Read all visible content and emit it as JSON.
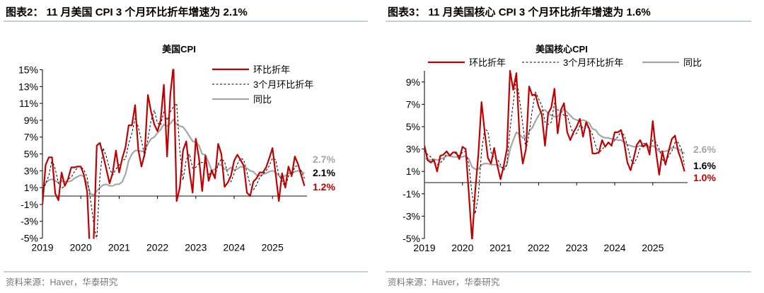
{
  "panels": [
    {
      "header": "图表2：  11 月美国 CPI 3 个月环比折年增速为 2.1%",
      "source": "资料来源：Haver，华泰研究"
    },
    {
      "header": "图表3：  11 月美国核心 CPI 3 个月环比折年增速为 1.6%",
      "source": "资料来源：Haver，华泰研究"
    }
  ],
  "colors": {
    "mom": "#c00000",
    "three_month": "#000000",
    "yoy": "#a6a6a6",
    "rule": "#c5d0de"
  },
  "chart_data": [
    {
      "type": "line",
      "title": "美国CPI",
      "x_start": "2019-01",
      "x_end": "2025-11",
      "frequency": "monthly",
      "xticks": [
        "2019",
        "2020",
        "2021",
        "2022",
        "2023",
        "2024",
        "2025"
      ],
      "yticks": [
        "15%",
        "13%",
        "11%",
        "9%",
        "7%",
        "5%",
        "3%",
        "1%",
        "-1%",
        "-3%",
        "-5%"
      ],
      "ytick_values": [
        15,
        13,
        11,
        9,
        7,
        5,
        3,
        1,
        -1,
        -3,
        -5
      ],
      "ylim": [
        -5,
        15
      ],
      "unit": "%",
      "legend_position": "top-right",
      "series": [
        {
          "name": "环比折年",
          "style": "solid-red",
          "end_label": "1.2%",
          "values": [
            -1,
            3.7,
            4.6,
            4.6,
            0.3,
            -0.5,
            2.8,
            1.2,
            2.0,
            3.4,
            3.4,
            3.5,
            3.5,
            2.5,
            0.5,
            -8,
            -5.5,
            6.0,
            6.3,
            4.8,
            3.2,
            1.5,
            2.8,
            5.4,
            2.8,
            4.5,
            5.8,
            8.4,
            8.4,
            10.8,
            5.5,
            3.5,
            5.0,
            12.0,
            10.0,
            8.5,
            7.7,
            9.0,
            13.2,
            4.7,
            12.0,
            15.5,
            -0.6,
            1.0,
            5.4,
            6.5,
            3.0,
            0.4,
            6.8,
            4.5,
            0.6,
            4.8,
            1.8,
            3.0,
            2.1,
            6.2,
            5.0,
            1.1,
            1.6,
            2.4,
            4.2,
            4.9,
            4.3,
            3.6,
            0.4,
            0.0,
            1.7,
            2.1,
            2.8,
            2.8,
            3.4,
            4.5,
            5.7,
            2.6,
            -0.6,
            2.7,
            1.0,
            3.5,
            2.4,
            4.7,
            3.8,
            2.5,
            1.2
          ]
        },
        {
          "name": "3个月环比折年",
          "style": "dashed-black",
          "end_label": "2.1%",
          "values": [
            0.3,
            1.5,
            2.4,
            4.3,
            3.2,
            1.5,
            0.9,
            1.2,
            2.0,
            2.2,
            2.9,
            3.4,
            3.5,
            3.1,
            2.2,
            -0.3,
            -3.2,
            -5.2,
            2.4,
            5.7,
            4.7,
            3.2,
            2.5,
            3.2,
            3.7,
            4.2,
            4.4,
            6.2,
            7.5,
            9.2,
            8.2,
            6.6,
            4.7,
            6.8,
            9.0,
            10.2,
            8.7,
            8.4,
            10.0,
            9.0,
            10.0,
            10.6,
            11.0,
            5.4,
            1.9,
            4.3,
            5.0,
            3.3,
            3.4,
            3.9,
            4.0,
            4.0,
            2.4,
            3.2,
            2.3,
            3.8,
            4.4,
            4.1,
            2.6,
            1.7,
            2.7,
            3.8,
            4.5,
            4.3,
            2.8,
            1.3,
            0.7,
            1.3,
            2.2,
            2.6,
            3.0,
            3.6,
            4.5,
            4.3,
            2.5,
            1.8,
            1.0,
            2.4,
            2.3,
            3.5,
            3.6,
            3.0,
            2.1
          ]
        },
        {
          "name": "同比",
          "style": "solid-gray",
          "end_label": "2.7%",
          "values": [
            1.6,
            1.5,
            1.9,
            2.0,
            1.8,
            1.6,
            1.8,
            1.7,
            1.7,
            1.8,
            2.1,
            2.3,
            2.5,
            2.3,
            1.5,
            0.3,
            0.1,
            0.6,
            1.0,
            1.3,
            1.4,
            1.2,
            1.2,
            1.4,
            1.4,
            1.7,
            2.6,
            4.2,
            5.0,
            5.4,
            5.4,
            5.3,
            5.4,
            6.2,
            6.8,
            7.0,
            7.5,
            7.9,
            8.5,
            8.3,
            8.6,
            9.1,
            8.5,
            8.3,
            8.2,
            7.7,
            7.1,
            6.5,
            6.4,
            6.0,
            5.0,
            4.9,
            4.0,
            3.0,
            3.2,
            3.7,
            3.7,
            3.2,
            3.1,
            3.4,
            3.1,
            3.2,
            3.5,
            3.4,
            3.3,
            3.0,
            2.9,
            2.5,
            2.4,
            2.6,
            2.7,
            2.9,
            3.0,
            2.8,
            2.4,
            2.3,
            2.4,
            2.7,
            2.7,
            2.9,
            3.0,
            2.9,
            2.7
          ]
        }
      ]
    },
    {
      "type": "line",
      "title": "美国核心CPI",
      "x_start": "2019-01",
      "x_end": "2025-11",
      "frequency": "monthly",
      "xticks": [
        "2019",
        "2020",
        "2021",
        "2022",
        "2023",
        "2024",
        "2025"
      ],
      "yticks": [
        "9%",
        "7%",
        "5%",
        "3%",
        "1%",
        "-1%",
        "-3%",
        "-5%"
      ],
      "ytick_values": [
        9,
        7,
        5,
        3,
        1,
        -1,
        -3,
        -5
      ],
      "ylim": [
        -5,
        10
      ],
      "unit": "%",
      "legend_position": "top",
      "series": [
        {
          "name": "环比折年",
          "style": "solid-red",
          "end_label": "1.0%",
          "values": [
            3.3,
            2.0,
            1.8,
            2.0,
            1.0,
            2.4,
            2.5,
            2.8,
            2.4,
            2.7,
            2.7,
            2.1,
            3.2,
            3.0,
            -1.0,
            -5.2,
            -0.8,
            2.5,
            7.2,
            4.5,
            2.2,
            1.7,
            3.1,
            1.5,
            0.3,
            1.5,
            3.0,
            10.0,
            8.3,
            9.8,
            4.0,
            1.7,
            3.0,
            8.6,
            7.8,
            7.9,
            6.8,
            6.1,
            3.3,
            6.2,
            6.7,
            8.4,
            4.4,
            6.5,
            7.1,
            4.5,
            3.8,
            4.5,
            5.0,
            5.7,
            4.1,
            5.4,
            4.8,
            2.6,
            2.6,
            2.7,
            3.8,
            3.2,
            3.6,
            3.3,
            4.5,
            4.5,
            4.7,
            3.5,
            1.8,
            1.1,
            2.2,
            3.4,
            3.8,
            3.2,
            3.5,
            2.5,
            5.5,
            2.8,
            0.7,
            2.8,
            1.6,
            2.8,
            3.9,
            4.2,
            2.8,
            2.0,
            1.0
          ]
        },
        {
          "name": "3个月环比折年",
          "style": "dashed-black",
          "end_label": "1.6%",
          "values": [
            2.9,
            2.5,
            2.3,
            1.9,
            1.6,
            1.8,
            2.0,
            2.6,
            2.6,
            2.6,
            2.6,
            2.4,
            2.7,
            2.8,
            1.6,
            -1.0,
            -2.8,
            -1.2,
            2.8,
            4.8,
            4.6,
            2.7,
            2.2,
            2.1,
            1.6,
            1.1,
            1.6,
            4.8,
            7.1,
            9.4,
            7.4,
            5.2,
            2.9,
            4.4,
            6.5,
            8.1,
            7.5,
            6.9,
            5.4,
            5.2,
            5.4,
            7.1,
            6.5,
            6.4,
            6.0,
            6.0,
            5.1,
            4.3,
            4.4,
            5.1,
            4.9,
            5.1,
            4.8,
            4.3,
            3.3,
            2.6,
            3.0,
            3.2,
            3.5,
            3.4,
            3.8,
            4.1,
            4.6,
            4.2,
            3.3,
            2.1,
            1.7,
            2.2,
            3.1,
            3.5,
            3.5,
            3.1,
            3.8,
            3.6,
            3.0,
            2.1,
            1.7,
            2.4,
            2.8,
            3.6,
            3.6,
            3.0,
            1.6
          ]
        },
        {
          "name": "同比",
          "style": "solid-gray",
          "end_label": "2.6%",
          "values": [
            2.2,
            2.1,
            2.0,
            2.1,
            2.0,
            2.1,
            2.2,
            2.4,
            2.4,
            2.3,
            2.3,
            2.3,
            2.3,
            2.4,
            2.1,
            1.4,
            1.2,
            1.2,
            1.6,
            1.7,
            1.7,
            1.6,
            1.6,
            1.6,
            1.4,
            1.3,
            1.6,
            3.0,
            3.8,
            4.5,
            4.3,
            4.0,
            4.0,
            4.6,
            4.9,
            5.5,
            6.0,
            6.4,
            6.5,
            6.2,
            6.0,
            5.9,
            5.9,
            6.3,
            6.6,
            6.3,
            6.0,
            5.7,
            5.6,
            5.5,
            5.6,
            5.5,
            5.3,
            4.8,
            4.7,
            4.3,
            4.1,
            4.0,
            4.0,
            3.9,
            3.9,
            3.8,
            3.8,
            3.6,
            3.4,
            3.3,
            3.2,
            3.2,
            3.3,
            3.3,
            3.3,
            3.2,
            3.3,
            3.1,
            2.8,
            2.8,
            2.8,
            2.9,
            3.1,
            3.1,
            3.0,
            2.8,
            2.6
          ]
        }
      ]
    }
  ]
}
